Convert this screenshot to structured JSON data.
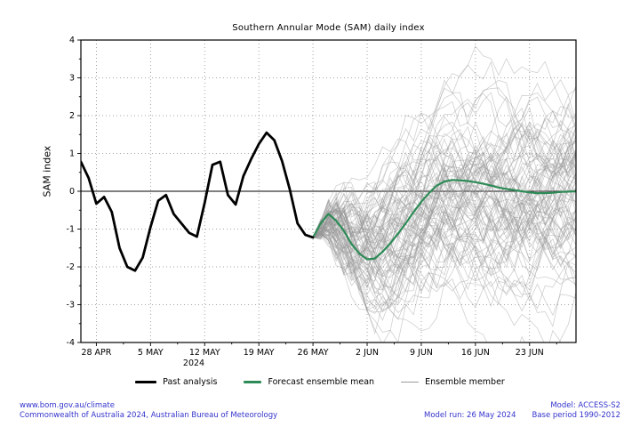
{
  "title": "Southern Annular Mode (SAM) daily index",
  "chart_data": {
    "type": "line",
    "title": "Southern Annular Mode (SAM) daily index",
    "xlabel": "",
    "ylabel": "SAM index",
    "ylim": [
      -4,
      4
    ],
    "y_ticks": [
      -4,
      -3,
      -2,
      -1,
      0,
      1,
      2,
      3,
      4
    ],
    "grid": true,
    "legend_position": "bottom",
    "x_start_date": "26 APR 2024",
    "x_span_days": 64,
    "x_tick_days": [
      2,
      9,
      16,
      23,
      30,
      37,
      44,
      51,
      58
    ],
    "x_tick_labels": [
      "28 APR",
      "5 MAY",
      "12 MAY",
      "19 MAY",
      "26 MAY",
      "2 JUN",
      "9 JUN",
      "16 JUN",
      "23 JUN"
    ],
    "x_axis_year": "2024",
    "zero_line": 0,
    "series": [
      {
        "name": "Past analysis",
        "color": "#000000",
        "line_width": 2.8,
        "start_day": 0,
        "step_days": 1,
        "values": [
          0.78,
          0.35,
          -0.33,
          -0.15,
          -0.55,
          -1.5,
          -2.0,
          -2.1,
          -1.75,
          -0.95,
          -0.25,
          -0.1,
          -0.6,
          -0.85,
          -1.1,
          -1.2,
          -0.3,
          0.7,
          0.78,
          -0.1,
          -0.35,
          0.4,
          0.85,
          1.25,
          1.55,
          1.35,
          0.8,
          0.05,
          -0.85,
          -1.15,
          -1.22
        ]
      },
      {
        "name": "Forecast ensemble mean",
        "color": "#2e8b57",
        "line_width": 2.2,
        "start_day": 30,
        "step_days": 1,
        "values": [
          -1.22,
          -0.85,
          -0.6,
          -0.78,
          -1.05,
          -1.4,
          -1.65,
          -1.8,
          -1.78,
          -1.6,
          -1.38,
          -1.12,
          -0.85,
          -0.55,
          -0.28,
          -0.05,
          0.15,
          0.26,
          0.3,
          0.29,
          0.27,
          0.24,
          0.2,
          0.15,
          0.1,
          0.06,
          0.03,
          0.0,
          -0.03,
          -0.05,
          -0.05,
          -0.04,
          -0.02,
          -0.01,
          0.0
        ]
      }
    ],
    "ensemble": {
      "name": "Ensemble member",
      "color": "#969696",
      "opacity": 0.45,
      "line_width": 0.8,
      "count": 90,
      "start_day": 30,
      "start_value": -1.22,
      "approx_final_range": [
        -3.5,
        4
      ],
      "seed": 1234
    }
  },
  "legend": {
    "items": [
      {
        "label": "Past analysis",
        "color": "#000000",
        "sample_width": 24,
        "sample_height": 3.5
      },
      {
        "label": "Forecast ensemble mean",
        "color": "#2e8b57",
        "sample_width": 20,
        "sample_height": 2.4
      },
      {
        "label": "Ensemble member",
        "color": "#999999",
        "sample_width": 20,
        "sample_height": 1.1
      }
    ]
  },
  "footer": {
    "link": "www.bom.gov.au/climate",
    "copyright": "Commonwealth of Australia 2024, Australian Bureau of Meteorology",
    "model": "Model: ACCESS-S2",
    "model_run": "Model run: 26 May 2024",
    "base_period": "Base period 1990-2012",
    "text_color": "#3333cc"
  }
}
